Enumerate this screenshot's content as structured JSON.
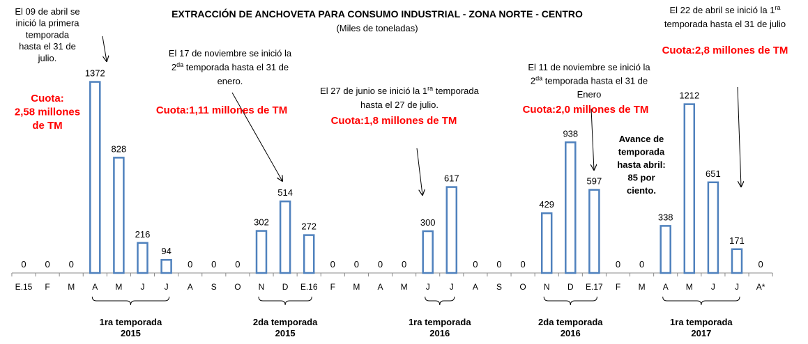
{
  "chart_data": {
    "type": "bar",
    "title": "EXTRACCIÓN DE ANCHOVETA PARA CONSUMO INDUSTRIAL - ZONA NORTE - CENTRO",
    "subtitle": "(Miles de toneladas)",
    "categories": [
      "E.15",
      "F",
      "M",
      "A",
      "M",
      "J",
      "J",
      "A",
      "S",
      "O",
      "N",
      "D",
      "E.16",
      "F",
      "M",
      "A",
      "M",
      "J",
      "J",
      "A",
      "S",
      "O",
      "N",
      "D",
      "E.17",
      "F",
      "M",
      "A",
      "M",
      "J",
      "J",
      "A*"
    ],
    "values": [
      0,
      0,
      0,
      1372,
      828,
      216,
      94,
      0,
      0,
      0,
      302,
      514,
      272,
      0,
      0,
      0,
      0,
      300,
      617,
      0,
      0,
      0,
      429,
      938,
      597,
      0,
      0,
      338,
      1212,
      651,
      171,
      0
    ],
    "color": "#4f81bd",
    "groups": [
      [
        "1ra temporada",
        "2015"
      ],
      [
        "2da temporada",
        "2015"
      ],
      [
        "1ra temporada",
        "2016"
      ],
      [
        "2da temporada",
        "2016"
      ],
      [
        "1ra temporada",
        "2017"
      ]
    ],
    "annotations": [
      {
        "lines": [
          [
            "El 09 de abril se"
          ],
          [
            "inició la primera"
          ],
          [
            "temporada"
          ],
          [
            "hasta el 31 de"
          ],
          [
            "julio."
          ]
        ]
      },
      {
        "lines": [
          [
            "Cuota:"
          ],
          [
            "2,58 millones"
          ],
          [
            "de TM"
          ]
        ],
        "color": "#ff0000",
        "bold": true
      },
      {
        "lines": [
          [
            "El 17 de noviembre se inició la"
          ],
          [
            "2",
            {
              "sup": "da"
            },
            " temporada hasta el 31 de"
          ],
          [
            "enero."
          ]
        ]
      },
      {
        "lines": [
          [
            "Cuota:1,11 millones de TM"
          ]
        ],
        "color": "#ff0000",
        "bold": true
      },
      {
        "lines": [
          [
            "El 27 de junio se inició la 1",
            {
              "sup": "ra"
            },
            " temporada"
          ],
          [
            "hasta el 27 de julio."
          ]
        ]
      },
      {
        "lines": [
          [
            "Cuota:1,8 millones de TM"
          ]
        ],
        "color": "#ff0000",
        "bold": true
      },
      {
        "lines": [
          [
            "El 11 de noviembre se inició la"
          ],
          [
            "2",
            {
              "sup": "da"
            },
            " temporada  hasta el 31 de"
          ],
          [
            "Enero"
          ]
        ]
      },
      {
        "lines": [
          [
            "Cuota:2,0 millones de TM"
          ]
        ],
        "color": "#ff0000",
        "bold": true
      },
      {
        "lines": [
          [
            "Avance de"
          ],
          [
            "temporada"
          ],
          [
            "hasta abril:"
          ],
          [
            "85 por"
          ],
          [
            "ciento."
          ]
        ],
        "bold": true
      },
      {
        "lines": [
          [
            "El 22 de abril se inició la 1",
            {
              "sup": "ra"
            }
          ],
          [
            "temporada hasta el 31 de julio"
          ]
        ]
      },
      {
        "lines": [
          [
            "Cuota:2,8 millones de TM"
          ]
        ],
        "color": "#ff0000",
        "bold": true
      }
    ]
  }
}
